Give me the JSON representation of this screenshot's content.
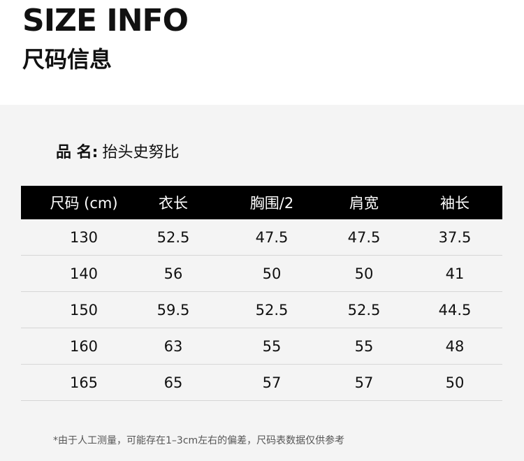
{
  "header": {
    "title_en": "SIZE INFO",
    "title_cn": "尺码信息"
  },
  "product": {
    "label": "品 名:",
    "name": "抬头史努比"
  },
  "table": {
    "columns": [
      "尺码 (cm)",
      "衣长",
      "胸围/2",
      "肩宽",
      "袖长"
    ],
    "rows": [
      [
        "130",
        "52.5",
        "47.5",
        "47.5",
        "37.5"
      ],
      [
        "140",
        "56",
        "50",
        "50",
        "41"
      ],
      [
        "150",
        "59.5",
        "52.5",
        "52.5",
        "44.5"
      ],
      [
        "160",
        "63",
        "55",
        "55",
        "48"
      ],
      [
        "165",
        "65",
        "57",
        "57",
        "50"
      ]
    ]
  },
  "note": "*由于人工测量，可能存在1–3cm左右的偏差，尺码表数据仅供参考"
}
